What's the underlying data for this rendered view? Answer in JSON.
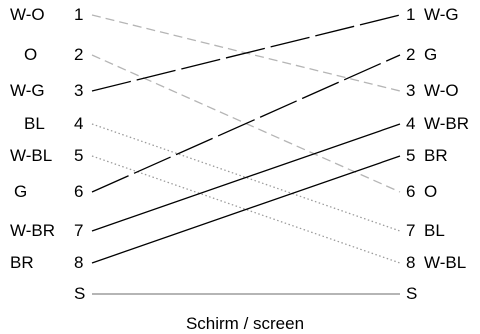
{
  "left_pins": [
    {
      "code": "W-O",
      "num": "1"
    },
    {
      "code": "O",
      "num": "2"
    },
    {
      "code": "W-G",
      "num": "3"
    },
    {
      "code": "BL",
      "num": "4"
    },
    {
      "code": "W-BL",
      "num": "5"
    },
    {
      "code": "G",
      "num": "6"
    },
    {
      "code": "W-BR",
      "num": "7"
    },
    {
      "code": "BR",
      "num": "8"
    },
    {
      "code": "",
      "num": "S"
    }
  ],
  "right_pins": [
    {
      "num": "1",
      "code": "W-G"
    },
    {
      "num": "2",
      "code": "G"
    },
    {
      "num": "3",
      "code": "W-O"
    },
    {
      "num": "4",
      "code": "W-BR"
    },
    {
      "num": "5",
      "code": "BR"
    },
    {
      "num": "6",
      "code": "O"
    },
    {
      "num": "7",
      "code": "BL"
    },
    {
      "num": "8",
      "code": "W-BL"
    },
    {
      "num": "S",
      "code": ""
    }
  ],
  "wires": [
    {
      "from": "1",
      "to": "3",
      "style": "dashed",
      "color": "#b5b5b5"
    },
    {
      "from": "2",
      "to": "6",
      "style": "dashed",
      "color": "#b5b5b5"
    },
    {
      "from": "3",
      "to": "1",
      "style": "longdash",
      "color": "#000000"
    },
    {
      "from": "4",
      "to": "7",
      "style": "dotted",
      "color": "#9a9a9a"
    },
    {
      "from": "5",
      "to": "8",
      "style": "dotted",
      "color": "#9a9a9a"
    },
    {
      "from": "6",
      "to": "2",
      "style": "longdash",
      "color": "#000000"
    },
    {
      "from": "7",
      "to": "4",
      "style": "solid",
      "color": "#000000"
    },
    {
      "from": "8",
      "to": "5",
      "style": "solid",
      "color": "#000000"
    },
    {
      "from": "S",
      "to": "S",
      "style": "solid",
      "color": "#b5b5b5"
    }
  ],
  "caption": "Schirm / screen"
}
